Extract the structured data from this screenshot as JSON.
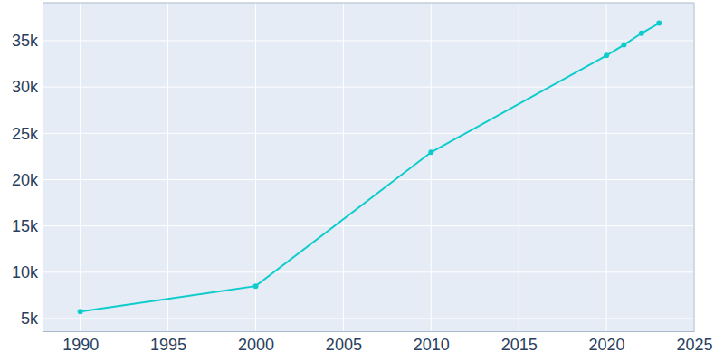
{
  "chart_data": {
    "type": "line",
    "x": [
      1990,
      2000,
      2010,
      2020,
      2021,
      2022,
      2023
    ],
    "values": [
      5750,
      8500,
      22950,
      33400,
      34550,
      35800,
      36900
    ],
    "color": "#0fcccc",
    "marker": "circle",
    "line_style": "solid",
    "xlim": [
      1987.85,
      2025
    ],
    "xticks": [
      1990,
      1995,
      2000,
      2005,
      2010,
      2015,
      2020,
      2025
    ],
    "ylim": [
      3630,
      39100
    ],
    "yticks": [
      {
        "value": 5000,
        "label": "5k"
      },
      {
        "value": 10000,
        "label": "10k"
      },
      {
        "value": 15000,
        "label": "15k"
      },
      {
        "value": 20000,
        "label": "20k"
      },
      {
        "value": 25000,
        "label": "25k"
      },
      {
        "value": 30000,
        "label": "30k"
      },
      {
        "value": 35000,
        "label": "35k"
      }
    ],
    "grid": true
  }
}
